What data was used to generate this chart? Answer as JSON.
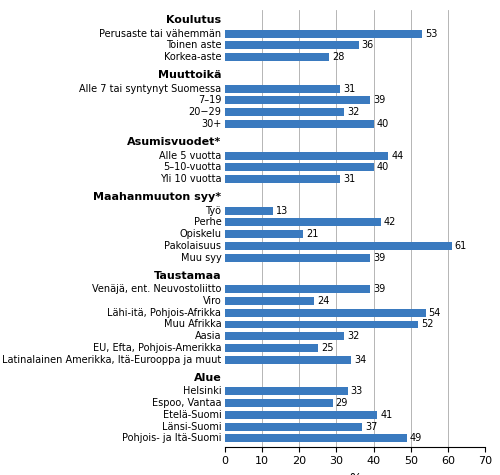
{
  "categories": [
    "Koulutus",
    "Perusaste tai vähemmän",
    "Toinen aste",
    "Korkea-aste",
    "Muuttoikä",
    "Alle 7 tai syntynyt Suomessa",
    "7–19",
    "20−29",
    "30+",
    "Asumisvuodet*",
    "Alle 5 vuotta",
    "5–10-vuotta",
    "Yli 10 vuotta",
    "Maahanmuuton syy*",
    "Työ",
    "Perhe",
    "Opiskelu",
    "Pakolaisuus",
    "Muu syy",
    "Taustamaa",
    "Venäjä, ent. Neuvostoliitto",
    "Viro",
    "Lähi-itä, Pohjois-Afrikka",
    "Muu Afrikka",
    "Aasia",
    "EU, Efta, Pohjois-Amerikka",
    "Latinalainen Amerikka, Itä-Eurooppa ja muut",
    "Alue",
    "Helsinki",
    "Espoo, Vantaa",
    "Etelä-Suomi",
    "Länsi-Suomi",
    "Pohjois- ja Itä-Suomi"
  ],
  "values": [
    null,
    53,
    36,
    28,
    null,
    31,
    39,
    32,
    40,
    null,
    44,
    40,
    31,
    null,
    13,
    42,
    21,
    61,
    39,
    null,
    39,
    24,
    54,
    52,
    32,
    25,
    34,
    null,
    33,
    29,
    41,
    37,
    49
  ],
  "header_indices": [
    0,
    4,
    9,
    13,
    19,
    27
  ],
  "bar_color": "#3a7abf",
  "background_color": "#ffffff",
  "xlabel": "%",
  "xlim": [
    0,
    70
  ],
  "xticks": [
    0,
    10,
    20,
    30,
    40,
    50,
    60,
    70
  ],
  "grid_color": "#aaaaaa",
  "label_fontsize": 7.0,
  "header_fontsize": 8.0,
  "value_fontsize": 7.0,
  "bar_height": 0.68,
  "figsize": [
    5.0,
    4.75
  ],
  "dpi": 100
}
